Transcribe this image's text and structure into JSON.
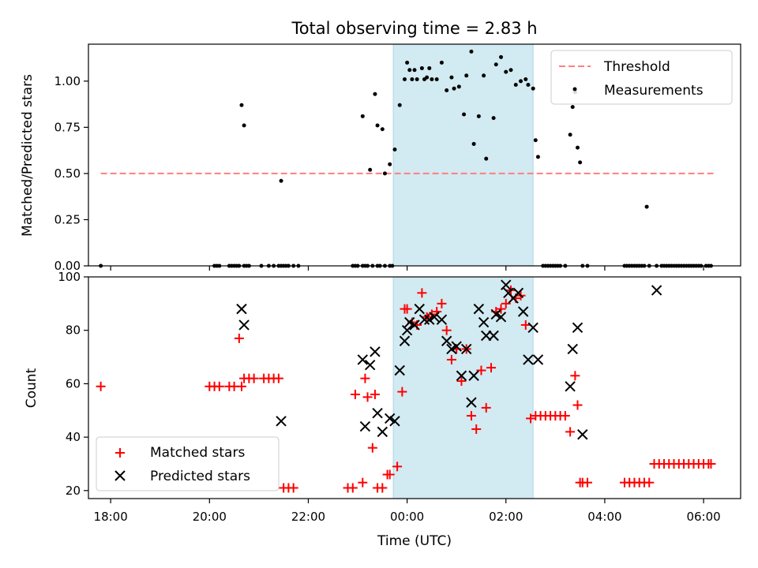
{
  "chart_data": [
    {
      "type": "scatter",
      "panel": "top",
      "title": "Total observing time = 2.83 h",
      "ylabel": "Matched/Predicted stars",
      "ylim": [
        0,
        1.2
      ],
      "yticks": [
        "0.00",
        "0.25",
        "0.50",
        "0.75",
        "1.00"
      ],
      "ytick_values": [
        0,
        0.25,
        0.5,
        0.75,
        1.0
      ],
      "x_unit": "hours since 00:00 UTC (negative = previous evening)",
      "xlim": [
        -6.45,
        6.75
      ],
      "shaded_region": {
        "x_start": -0.28,
        "x_end": 2.55,
        "color": "#add8e6"
      },
      "threshold": {
        "name": "Threshold",
        "y": 0.5,
        "x_start": -6.2,
        "x_end": 6.2,
        "color": "#ff7f7f",
        "style": "dashed"
      },
      "legend": {
        "position": "top-right",
        "entries": [
          "Threshold",
          "Measurements"
        ]
      },
      "series": [
        {
          "name": "Measurements",
          "color": "#000000",
          "marker": "dot",
          "x": [
            -6.2,
            -3.9,
            -3.85,
            -3.8,
            -3.6,
            -3.55,
            -3.5,
            -3.45,
            -3.4,
            -3.3,
            -3.25,
            -3.2,
            -2.95,
            -2.8,
            -2.7,
            -2.6,
            -2.55,
            -2.5,
            -2.45,
            -2.4,
            -2.3,
            -2.2,
            -1.1,
            -1.05,
            -1.0,
            -0.9,
            -0.85,
            -0.8,
            -0.7,
            -0.6,
            -0.55,
            -0.45,
            -0.35,
            -0.3,
            -3.35,
            -3.3,
            -2.55,
            -0.9,
            -0.75,
            -0.65,
            -0.6,
            -0.5,
            -0.45,
            -0.35,
            -0.25,
            -0.15,
            -0.05,
            0.0,
            0.05,
            0.1,
            0.15,
            0.2,
            0.3,
            0.35,
            0.4,
            0.45,
            0.5,
            0.6,
            0.7,
            0.8,
            0.9,
            0.95,
            1.05,
            1.15,
            1.2,
            1.3,
            1.35,
            1.45,
            1.55,
            1.6,
            1.75,
            1.8,
            1.9,
            2.0,
            2.1,
            2.2,
            2.3,
            2.4,
            2.45,
            2.55,
            2.6,
            2.65,
            2.75,
            2.8,
            2.85,
            2.9,
            2.95,
            3.0,
            3.05,
            3.1,
            3.2,
            3.3,
            3.35,
            3.4,
            3.45,
            3.5,
            3.55,
            3.65,
            4.4,
            4.45,
            4.5,
            4.55,
            4.6,
            4.65,
            4.7,
            4.75,
            4.8,
            4.85,
            4.9,
            5.05,
            5.15,
            5.2,
            5.25,
            5.3,
            5.35,
            5.4,
            5.45,
            5.5,
            5.55,
            5.6,
            5.65,
            5.7,
            5.75,
            5.8,
            5.85,
            5.9,
            5.95,
            6.05,
            6.1,
            6.15
          ],
          "y": [
            0.0,
            0.0,
            0.0,
            0.0,
            0.0,
            0.0,
            0.0,
            0.0,
            0.0,
            0.0,
            0.0,
            0.0,
            0.0,
            0.0,
            0.0,
            0.0,
            0.0,
            0.0,
            0.0,
            0.0,
            0.0,
            0.0,
            0.0,
            0.0,
            0.0,
            0.0,
            0.0,
            0.0,
            0.0,
            0.0,
            0.0,
            0.0,
            0.0,
            0.0,
            0.87,
            0.76,
            0.46,
            0.81,
            0.52,
            0.93,
            0.76,
            0.74,
            0.5,
            0.55,
            0.63,
            0.87,
            1.01,
            1.1,
            1.06,
            1.01,
            1.06,
            1.01,
            1.07,
            1.01,
            1.02,
            1.07,
            1.01,
            1.01,
            1.1,
            0.95,
            1.02,
            0.96,
            0.97,
            0.82,
            1.03,
            1.16,
            0.66,
            0.81,
            1.03,
            0.58,
            0.8,
            1.09,
            1.13,
            1.05,
            1.06,
            0.98,
            1.0,
            1.01,
            0.98,
            0.96,
            0.68,
            0.59,
            0.0,
            0.0,
            0.0,
            0.0,
            0.0,
            0.0,
            0.0,
            0.0,
            0.0,
            0.71,
            0.86,
            0.94,
            0.64,
            0.56,
            0.0,
            0.0,
            0.0,
            0.0,
            0.0,
            0.0,
            0.0,
            0.0,
            0.0,
            0.0,
            0.0,
            0.32,
            0.0,
            0.0,
            0.0,
            0.0,
            0.0,
            0.0,
            0.0,
            0.0,
            0.0,
            0.0,
            0.0,
            0.0,
            0.0,
            0.0,
            0.0,
            0.0,
            0.0,
            0.0,
            0.0,
            0.0,
            0.0,
            0.0
          ]
        }
      ]
    },
    {
      "type": "scatter",
      "panel": "bottom",
      "xlabel": "Time (UTC)",
      "ylabel": "Count",
      "ylim": [
        17,
        100
      ],
      "yticks": [
        "20",
        "40",
        "60",
        "80",
        "100"
      ],
      "ytick_values": [
        20,
        40,
        60,
        80,
        100
      ],
      "xticks": [
        "18:00",
        "20:00",
        "22:00",
        "00:00",
        "02:00",
        "04:00",
        "06:00"
      ],
      "xtick_values": [
        -6,
        -4,
        -2,
        0,
        2,
        4,
        6
      ],
      "x_unit": "hours since 00:00 UTC (negative = previous evening)",
      "xlim": [
        -6.45,
        6.75
      ],
      "shaded_region": {
        "x_start": -0.28,
        "x_end": 2.55,
        "color": "#add8e6"
      },
      "legend": {
        "position": "lower-left",
        "entries": [
          "Matched stars",
          "Predicted stars"
        ]
      },
      "series": [
        {
          "name": "Matched stars",
          "color": "#ff0000",
          "marker": "plus",
          "x": [
            -6.2,
            -4.0,
            -3.9,
            -3.8,
            -3.6,
            -3.5,
            -3.4,
            -3.35,
            -3.3,
            -3.2,
            -3.1,
            -2.9,
            -2.8,
            -2.7,
            -2.6,
            -2.5,
            -2.4,
            -2.3,
            -1.2,
            -1.1,
            -1.05,
            -0.9,
            -0.85,
            -0.8,
            -0.7,
            -0.65,
            -0.6,
            -0.5,
            -0.4,
            -0.35,
            -0.2,
            -0.1,
            -0.05,
            0.0,
            0.1,
            0.2,
            0.3,
            0.4,
            0.5,
            0.6,
            0.7,
            0.8,
            0.9,
            1.0,
            1.1,
            1.2,
            1.3,
            1.4,
            1.5,
            1.6,
            1.7,
            1.8,
            1.9,
            2.0,
            2.1,
            2.2,
            2.3,
            2.4,
            2.5,
            2.6,
            2.7,
            2.8,
            2.9,
            3.0,
            3.1,
            3.2,
            3.3,
            3.4,
            3.45,
            3.5,
            3.55,
            3.65,
            4.4,
            4.5,
            4.6,
            4.7,
            4.8,
            4.9,
            5.0,
            5.1,
            5.2,
            5.3,
            5.4,
            5.5,
            5.6,
            5.7,
            5.8,
            5.9,
            6.0,
            6.1,
            6.15
          ],
          "y": [
            59,
            59,
            59,
            59,
            59,
            59,
            77,
            59,
            62,
            62,
            62,
            62,
            62,
            62,
            62,
            21,
            21,
            21,
            21,
            21,
            56,
            23,
            62,
            55,
            36,
            56,
            21,
            21,
            26,
            26,
            29,
            57,
            88,
            88,
            83,
            82,
            94,
            85,
            86,
            87,
            90,
            80,
            69,
            73,
            61,
            73,
            48,
            43,
            65,
            51,
            66,
            87,
            88,
            90,
            95,
            92,
            93,
            82,
            47,
            48,
            48,
            48,
            48,
            48,
            48,
            48,
            42,
            63,
            52,
            23,
            23,
            23,
            23,
            23,
            23,
            23,
            23,
            23,
            30,
            30,
            30,
            30,
            30,
            30,
            30,
            30,
            30,
            30,
            30,
            30,
            30
          ],
          "y_note": null
        },
        {
          "name": "Predicted stars",
          "color": "#000000",
          "marker": "x",
          "x": [
            -3.35,
            -3.3,
            -2.55,
            -0.9,
            -0.85,
            -0.75,
            -0.65,
            -0.6,
            -0.5,
            -0.35,
            -0.25,
            -0.15,
            -0.05,
            0.0,
            0.05,
            0.15,
            0.25,
            0.35,
            0.45,
            0.55,
            0.7,
            0.8,
            0.9,
            1.0,
            1.1,
            1.2,
            1.3,
            1.35,
            1.45,
            1.55,
            1.6,
            1.75,
            1.8,
            1.9,
            2.0,
            2.05,
            2.15,
            2.25,
            2.35,
            2.45,
            2.55,
            2.65,
            3.3,
            3.35,
            3.45,
            3.55,
            5.05
          ],
          "y": [
            88,
            82,
            46,
            69,
            44,
            67,
            72,
            49,
            42,
            47,
            46,
            65,
            76,
            80,
            83,
            82,
            88,
            84,
            84,
            85,
            84,
            76,
            73,
            74,
            63,
            73,
            53,
            63,
            88,
            83,
            78,
            78,
            86,
            85,
            97,
            94,
            92,
            94,
            87,
            69,
            81,
            69,
            59,
            73,
            81,
            41,
            95
          ]
        }
      ]
    }
  ]
}
